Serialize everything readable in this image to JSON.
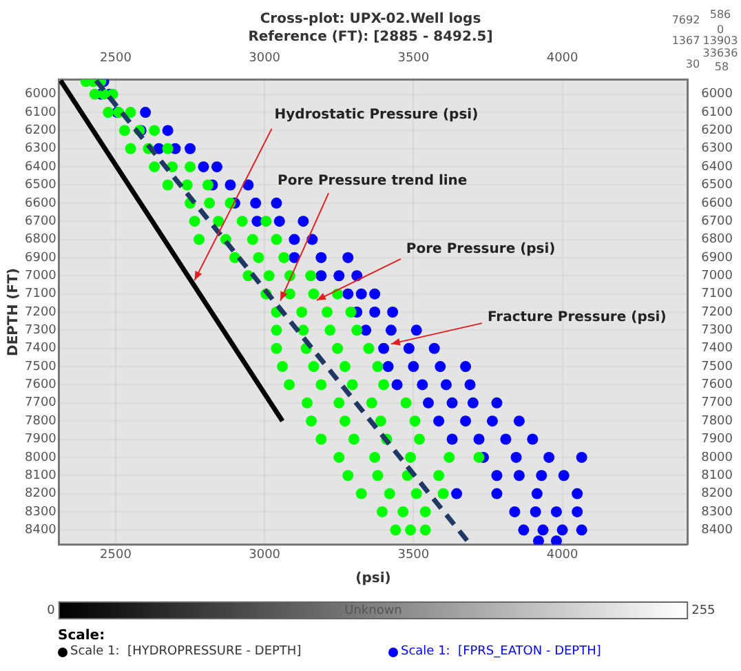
{
  "chart_data": {
    "type": "scatter",
    "title": "Cross-plot: UPX-02.Well logs",
    "subtitle": "Reference (FT): [2885 - 8492.5]",
    "xlabel": "(psi)",
    "ylabel": "DEPTH (FT)",
    "legend_title": "Scale:",
    "legend": "bottom",
    "grid": true,
    "xlim": [
      2310,
      4420
    ],
    "xticks": [
      2500,
      3000,
      3500,
      4000
    ],
    "x2lim": [
      2310,
      4420
    ],
    "x2ticks": [
      2500,
      3000,
      3500,
      4000
    ],
    "ylim": [
      8480,
      5920
    ],
    "yticks": [
      6000,
      6100,
      6200,
      6300,
      6400,
      6500,
      6600,
      6700,
      6800,
      6900,
      7000,
      7100,
      7200,
      7300,
      7400,
      7500,
      7600,
      7700,
      7800,
      7900,
      8000,
      8100,
      8200,
      8300,
      8400
    ],
    "y2lim": [
      8480,
      5920
    ],
    "y2ticks": [
      6000,
      6100,
      6200,
      6300,
      6400,
      6500,
      6600,
      6700,
      6800,
      6900,
      7000,
      7100,
      7200,
      7300,
      7400,
      7500,
      7600,
      7700,
      7800,
      7900,
      8000,
      8100,
      8200,
      8300,
      8400
    ],
    "clabel": "Unknown",
    "clim": [
      0,
      255
    ],
    "cticks": [
      0,
      255
    ],
    "annotations": [
      "7692",
      "586",
      "0",
      "1367",
      "13903",
      "33636",
      "30",
      "58",
      {
        "text": "Hydrostatic Pressure (psi)",
        "x": 2765,
        "y": 7025
      },
      {
        "text": "Pore Pressure trend line",
        "x": 3053,
        "y": 7137
      },
      {
        "text": "Pore Pressure (psi)",
        "x": 3175,
        "y": 7135
      },
      {
        "text": "Fracture Pressure (psi)",
        "x": 3425,
        "y": 7375
      }
    ],
    "series": [
      {
        "type": "scatter",
        "color": "#00ff00",
        "marker": "circle",
        "x": [
          2400,
          2425,
          2450,
          2430,
          2460,
          2490,
          2475,
          2510,
          2550,
          2530,
          2580,
          2630,
          2550,
          2610,
          2675,
          2630,
          2690,
          2750,
          2675,
          2740,
          2810,
          2750,
          2815,
          2885,
          2765,
          2845,
          2925,
          3005,
          2780,
          2870,
          2960,
          3040,
          2900,
          2980,
          3065,
          2945,
          3015,
          3085,
          3155,
          3005,
          3085,
          3165,
          3245,
          3040,
          3125,
          3210,
          3290,
          3040,
          3130,
          3220,
          3310,
          3040,
          3140,
          3245,
          3350,
          3060,
          3165,
          3270,
          3380,
          3083,
          3190,
          3295,
          3400,
          3143,
          3250,
          3360,
          3475,
          3157,
          3270,
          3390,
          3505,
          3190,
          3300,
          3410,
          3520,
          3250,
          3370,
          3490,
          3620,
          3720,
          3280,
          3380,
          3480,
          3585,
          3325,
          3420,
          3510,
          3600,
          3395,
          3465,
          3540,
          3440,
          3490,
          3540
        ],
        "values": [
          5930,
          5930,
          5930,
          6000,
          6000,
          6000,
          6100,
          6100,
          6100,
          6200,
          6200,
          6200,
          6300,
          6300,
          6300,
          6400,
          6400,
          6400,
          6500,
          6500,
          6500,
          6600,
          6600,
          6600,
          6700,
          6700,
          6700,
          6700,
          6800,
          6800,
          6800,
          6800,
          6900,
          6900,
          6900,
          7000,
          7000,
          7000,
          7000,
          7100,
          7100,
          7100,
          7100,
          7200,
          7200,
          7200,
          7200,
          7300,
          7300,
          7300,
          7300,
          7400,
          7400,
          7400,
          7400,
          7500,
          7500,
          7500,
          7500,
          7600,
          7600,
          7600,
          7600,
          7700,
          7700,
          7700,
          7700,
          7800,
          7800,
          7800,
          7800,
          7900,
          7900,
          7900,
          7900,
          8000,
          8000,
          8000,
          8000,
          8000,
          8100,
          8100,
          8100,
          8100,
          8200,
          8200,
          8200,
          8200,
          8300,
          8300,
          8300,
          8400,
          8400,
          8400
        ]
      },
      {
        "type": "scatter",
        "name": "Scale 1:  [FPRS_EATON - DEPTH]",
        "color": "#0000ff",
        "marker": "circle",
        "x": [
          2460,
          2450,
          2480,
          2505,
          2600,
          2585,
          2675,
          2645,
          2700,
          2750,
          2795,
          2840,
          2825,
          2885,
          2945,
          2900,
          2970,
          3040,
          2975,
          3050,
          3130,
          3100,
          3160,
          3100,
          3190,
          3280,
          3190,
          3250,
          3310,
          3280,
          3325,
          3370,
          3310,
          3370,
          3430,
          3340,
          3425,
          3510,
          3400,
          3485,
          3570,
          3415,
          3500,
          3590,
          3675,
          3445,
          3530,
          3610,
          3690,
          3550,
          3630,
          3700,
          3780,
          3585,
          3675,
          3765,
          3855,
          3630,
          3720,
          3810,
          3900,
          3735,
          3845,
          3955,
          4065,
          3780,
          3855,
          3930,
          4005,
          3645,
          3780,
          3915,
          4050,
          3840,
          3910,
          3980,
          4050,
          3870,
          3935,
          4000,
          4065,
          3920,
          3980
        ],
        "values": [
          5930,
          6000,
          6000,
          6100,
          6100,
          6200,
          6200,
          6300,
          6300,
          6300,
          6400,
          6400,
          6500,
          6500,
          6500,
          6600,
          6600,
          6600,
          6700,
          6700,
          6700,
          6800,
          6800,
          6900,
          6900,
          6900,
          7000,
          7000,
          7000,
          7100,
          7100,
          7100,
          7200,
          7200,
          7200,
          7300,
          7300,
          7300,
          7400,
          7400,
          7400,
          7500,
          7500,
          7500,
          7500,
          7600,
          7600,
          7600,
          7600,
          7700,
          7700,
          7700,
          7700,
          7800,
          7800,
          7800,
          7800,
          7900,
          7900,
          7900,
          7900,
          8000,
          8000,
          8000,
          8000,
          8100,
          8100,
          8100,
          8100,
          8200,
          8200,
          8200,
          8200,
          8300,
          8300,
          8300,
          8300,
          8400,
          8400,
          8400,
          8400,
          8460,
          8460
        ]
      },
      {
        "type": "line",
        "color": "#1f3864",
        "marker": "none",
        "line_style": "dashed",
        "x": [
          2434,
          3686
        ],
        "values": [
          5925,
          8470
        ]
      },
      {
        "type": "line",
        "name": "Scale 1:  [HYDROPRESSURE - DEPTH]",
        "color": "#000000",
        "marker": "none",
        "line_style": "solid",
        "x": [
          2315,
          3060
        ],
        "values": [
          5925,
          7800
        ]
      }
    ]
  }
}
